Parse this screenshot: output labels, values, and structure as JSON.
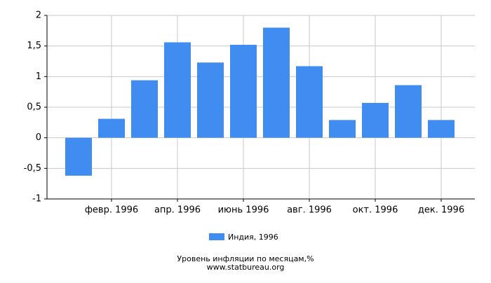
{
  "chart_data": {
    "type": "bar",
    "categories": [
      null,
      "февр. 1996",
      null,
      "апр. 1996",
      null,
      "июнь 1996",
      null,
      "авг. 1996",
      null,
      "окт. 1996",
      null,
      "дек. 1996"
    ],
    "series": [
      {
        "name": "Индия, 1996",
        "color": "#418cf0",
        "values": [
          -0.62,
          0.31,
          0.94,
          1.56,
          1.23,
          1.52,
          1.8,
          1.17,
          0.29,
          0.57,
          0.86,
          0.29
        ]
      }
    ],
    "ylim": [
      -1,
      2
    ],
    "yticks": [
      {
        "value": -1,
        "label": "-1"
      },
      {
        "value": -0.5,
        "label": "-0,5"
      },
      0,
      {
        "value": 0.5,
        "label": "0,5"
      },
      1,
      {
        "value": 1.5,
        "label": "1,5"
      },
      2
    ],
    "grid": true,
    "title": "Уровень инфляции по месяцам,%",
    "subtitle": "www.statbureau.org"
  }
}
